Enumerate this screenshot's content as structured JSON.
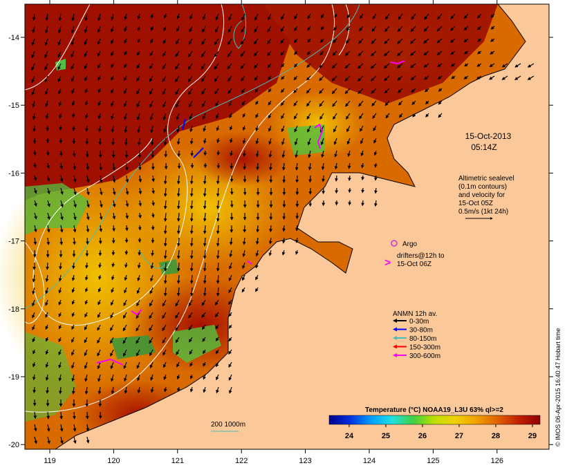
{
  "colors": {
    "land": "#fbc89a",
    "sea_warm": "#a01000",
    "sea_mid": "#d86a00",
    "sea_cool": "#e8b000",
    "cold_patch": "#52c040",
    "drifter": "#ff00ff",
    "argo": "#cc33cc",
    "contour_white": "#ffffff",
    "contour_cyan": "#40c0c0"
  },
  "axes": {
    "lon_ticks": [
      "119",
      "120",
      "121",
      "122",
      "123",
      "124",
      "125",
      "126"
    ],
    "lat_ticks": [
      "-14",
      "-15",
      "-16",
      "-17",
      "-18",
      "-19",
      "-20"
    ]
  },
  "annotations": {
    "date": "15-Oct-2013",
    "time": "05:14Z",
    "alt_line1": "Altimetric sealevel",
    "alt_line2": "(0.1m contours)",
    "alt_line3": "and velocity for",
    "alt_line4": "15-Oct 05Z",
    "alt_line5": "0.5m/s (1kt 24h)",
    "argo_label": "Argo",
    "drifter_line1": "drifters@12h to",
    "drifter_line2": "15-Oct 06Z",
    "depth_label": "200  1000m",
    "credit": "© IMOS 06-Apr-2015 16:40:47 Hobart time"
  },
  "anmn_legend": {
    "title": "ANMN 12h av.",
    "items": [
      {
        "label": "0-30m",
        "color": "#000000"
      },
      {
        "label": "30-80m",
        "color": "#0000ff"
      },
      {
        "label": "80-150m",
        "color": "#40c0c0"
      },
      {
        "label": "150-300m",
        "color": "#ff0000"
      },
      {
        "label": "300-600m",
        "color": "#ff00ff"
      }
    ]
  },
  "colorbar": {
    "title": "Temperature (°C) NOAA19_L3U 63% ql>=2",
    "ticks": [
      "24",
      "25",
      "26",
      "27",
      "28",
      "29"
    ],
    "stops": [
      "#00008c",
      "#0030e0",
      "#00a0ff",
      "#20e0e0",
      "#40d040",
      "#c0e000",
      "#f0d000",
      "#f0a000",
      "#e06000",
      "#c02000",
      "#900000"
    ]
  }
}
